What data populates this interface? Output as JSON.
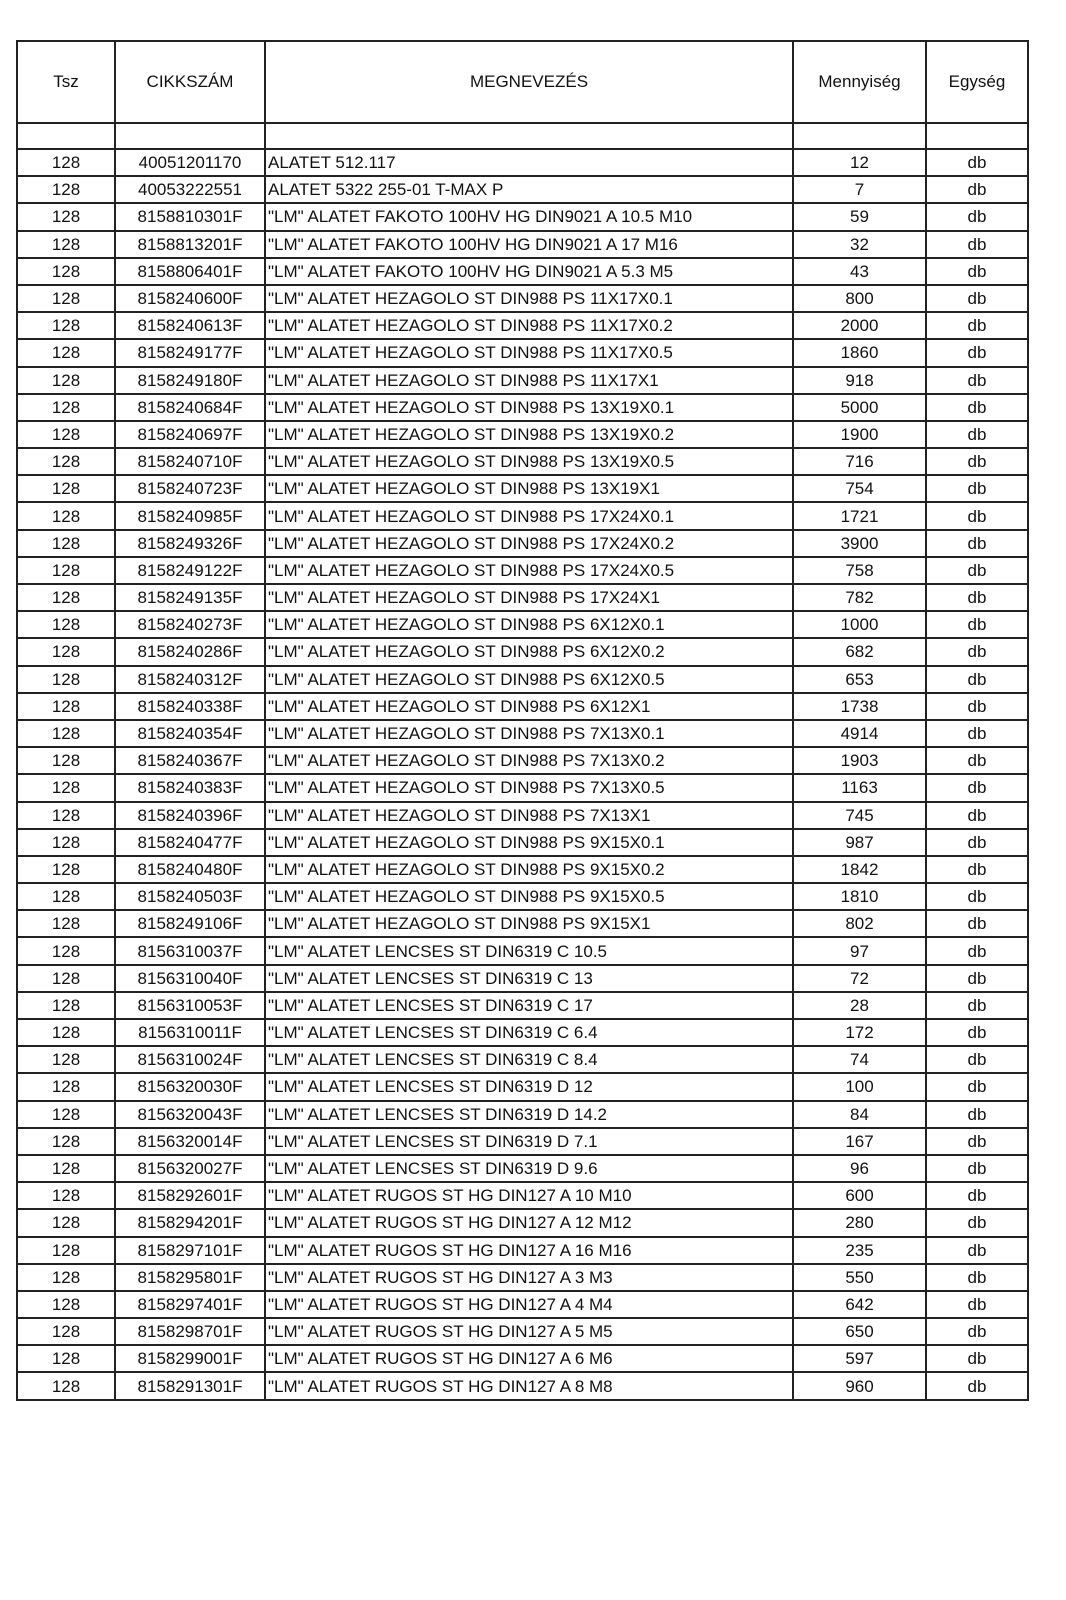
{
  "table": {
    "headers": [
      "Tsz",
      "CIKKSZÁM",
      "MEGNEVEZÉS",
      "Mennyiség",
      "Egység"
    ],
    "rows": [
      [
        "128",
        "40051201170",
        "ALATET 512.117",
        "12",
        "db"
      ],
      [
        "128",
        "40053222551",
        "ALATET 5322 255-01 T-MAX P",
        "7",
        "db"
      ],
      [
        "128",
        "8158810301F",
        "\"LM\" ALATET FAKOTO 100HV HG DIN9021 A 10.5 M10",
        "59",
        "db"
      ],
      [
        "128",
        "8158813201F",
        "\"LM\" ALATET FAKOTO 100HV HG DIN9021 A 17 M16",
        "32",
        "db"
      ],
      [
        "128",
        "8158806401F",
        "\"LM\" ALATET FAKOTO 100HV HG DIN9021 A 5.3 M5",
        "43",
        "db"
      ],
      [
        "128",
        "8158240600F",
        "\"LM\" ALATET HEZAGOLO ST DIN988 PS 11X17X0.1",
        "800",
        "db"
      ],
      [
        "128",
        "8158240613F",
        "\"LM\" ALATET HEZAGOLO ST DIN988 PS 11X17X0.2",
        "2000",
        "db"
      ],
      [
        "128",
        "8158249177F",
        "\"LM\" ALATET HEZAGOLO ST DIN988 PS 11X17X0.5",
        "1860",
        "db"
      ],
      [
        "128",
        "8158249180F",
        "\"LM\" ALATET HEZAGOLO ST DIN988 PS 11X17X1",
        "918",
        "db"
      ],
      [
        "128",
        "8158240684F",
        "\"LM\" ALATET HEZAGOLO ST DIN988 PS 13X19X0.1",
        "5000",
        "db"
      ],
      [
        "128",
        "8158240697F",
        "\"LM\" ALATET HEZAGOLO ST DIN988 PS 13X19X0.2",
        "1900",
        "db"
      ],
      [
        "128",
        "8158240710F",
        "\"LM\" ALATET HEZAGOLO ST DIN988 PS 13X19X0.5",
        "716",
        "db"
      ],
      [
        "128",
        "8158240723F",
        "\"LM\" ALATET HEZAGOLO ST DIN988 PS 13X19X1",
        "754",
        "db"
      ],
      [
        "128",
        "8158240985F",
        "\"LM\" ALATET HEZAGOLO ST DIN988 PS 17X24X0.1",
        "1721",
        "db"
      ],
      [
        "128",
        "8158249326F",
        "\"LM\" ALATET HEZAGOLO ST DIN988 PS 17X24X0.2",
        "3900",
        "db"
      ],
      [
        "128",
        "8158249122F",
        "\"LM\" ALATET HEZAGOLO ST DIN988 PS 17X24X0.5",
        "758",
        "db"
      ],
      [
        "128",
        "8158249135F",
        "\"LM\" ALATET HEZAGOLO ST DIN988 PS 17X24X1",
        "782",
        "db"
      ],
      [
        "128",
        "8158240273F",
        "\"LM\" ALATET HEZAGOLO ST DIN988 PS 6X12X0.1",
        "1000",
        "db"
      ],
      [
        "128",
        "8158240286F",
        "\"LM\" ALATET HEZAGOLO ST DIN988 PS 6X12X0.2",
        "682",
        "db"
      ],
      [
        "128",
        "8158240312F",
        "\"LM\" ALATET HEZAGOLO ST DIN988 PS 6X12X0.5",
        "653",
        "db"
      ],
      [
        "128",
        "8158240338F",
        "\"LM\" ALATET HEZAGOLO ST DIN988 PS 6X12X1",
        "1738",
        "db"
      ],
      [
        "128",
        "8158240354F",
        "\"LM\" ALATET HEZAGOLO ST DIN988 PS 7X13X0.1",
        "4914",
        "db"
      ],
      [
        "128",
        "8158240367F",
        "\"LM\" ALATET HEZAGOLO ST DIN988 PS 7X13X0.2",
        "1903",
        "db"
      ],
      [
        "128",
        "8158240383F",
        "\"LM\" ALATET HEZAGOLO ST DIN988 PS 7X13X0.5",
        "1163",
        "db"
      ],
      [
        "128",
        "8158240396F",
        "\"LM\" ALATET HEZAGOLO ST DIN988 PS 7X13X1",
        "745",
        "db"
      ],
      [
        "128",
        "8158240477F",
        "\"LM\" ALATET HEZAGOLO ST DIN988 PS 9X15X0.1",
        "987",
        "db"
      ],
      [
        "128",
        "8158240480F",
        "\"LM\" ALATET HEZAGOLO ST DIN988 PS 9X15X0.2",
        "1842",
        "db"
      ],
      [
        "128",
        "8158240503F",
        "\"LM\" ALATET HEZAGOLO ST DIN988 PS 9X15X0.5",
        "1810",
        "db"
      ],
      [
        "128",
        "8158249106F",
        "\"LM\" ALATET HEZAGOLO ST DIN988 PS 9X15X1",
        "802",
        "db"
      ],
      [
        "128",
        "8156310037F",
        "\"LM\" ALATET LENCSES ST DIN6319 C 10.5",
        "97",
        "db"
      ],
      [
        "128",
        "8156310040F",
        "\"LM\" ALATET LENCSES ST DIN6319 C 13",
        "72",
        "db"
      ],
      [
        "128",
        "8156310053F",
        "\"LM\" ALATET LENCSES ST DIN6319 C 17",
        "28",
        "db"
      ],
      [
        "128",
        "8156310011F",
        "\"LM\" ALATET LENCSES ST DIN6319 C 6.4",
        "172",
        "db"
      ],
      [
        "128",
        "8156310024F",
        "\"LM\" ALATET LENCSES ST DIN6319 C 8.4",
        "74",
        "db"
      ],
      [
        "128",
        "8156320030F",
        "\"LM\" ALATET LENCSES ST DIN6319 D 12",
        "100",
        "db"
      ],
      [
        "128",
        "8156320043F",
        "\"LM\" ALATET LENCSES ST DIN6319 D 14.2",
        "84",
        "db"
      ],
      [
        "128",
        "8156320014F",
        "\"LM\" ALATET LENCSES ST DIN6319 D 7.1",
        "167",
        "db"
      ],
      [
        "128",
        "8156320027F",
        "\"LM\" ALATET LENCSES ST DIN6319 D 9.6",
        "96",
        "db"
      ],
      [
        "128",
        "8158292601F",
        "\"LM\" ALATET RUGOS ST HG DIN127 A 10 M10",
        "600",
        "db"
      ],
      [
        "128",
        "8158294201F",
        "\"LM\" ALATET RUGOS ST HG DIN127 A 12 M12",
        "280",
        "db"
      ],
      [
        "128",
        "8158297101F",
        "\"LM\" ALATET RUGOS ST HG DIN127 A 16 M16",
        "235",
        "db"
      ],
      [
        "128",
        "8158295801F",
        "\"LM\" ALATET RUGOS ST HG DIN127 A 3 M3",
        "550",
        "db"
      ],
      [
        "128",
        "8158297401F",
        "\"LM\" ALATET RUGOS ST HG DIN127 A 4 M4",
        "642",
        "db"
      ],
      [
        "128",
        "8158298701F",
        "\"LM\" ALATET RUGOS ST HG DIN127 A 5 M5",
        "650",
        "db"
      ],
      [
        "128",
        "8158299001F",
        "\"LM\" ALATET RUGOS ST HG DIN127 A 6 M6",
        "597",
        "db"
      ],
      [
        "128",
        "8158291301F",
        "\"LM\" ALATET RUGOS ST HG DIN127 A 8 M8",
        "960",
        "db"
      ]
    ]
  }
}
